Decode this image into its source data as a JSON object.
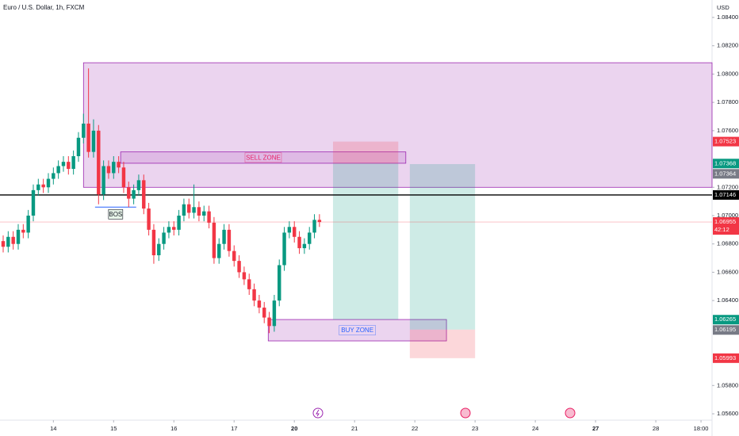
{
  "chart_data": {
    "type": "candlestick",
    "title": "Euro / U.S. Dollar, 1h, FXCM",
    "currency": "USD",
    "up_color": "#089981",
    "down_color": "#f23645",
    "xlim": [
      -0.632,
      141.2
    ],
    "ylim": [
      1.056,
      1.084
    ],
    "yticks": [
      {
        "value": 1.056,
        "label": "1.05600"
      },
      {
        "value": 1.058,
        "label": "1.05800"
      },
      {
        "value": 1.064,
        "label": "1.06400"
      },
      {
        "value": 1.066,
        "label": "1.06600"
      },
      {
        "value": 1.068,
        "label": "1.06800"
      },
      {
        "value": 1.07,
        "label": "1.07000"
      },
      {
        "value": 1.072,
        "label": "1.07200"
      },
      {
        "value": 1.076,
        "label": "1.07600"
      },
      {
        "value": 1.078,
        "label": "1.07800"
      },
      {
        "value": 1.08,
        "label": "1.08000"
      },
      {
        "value": 1.082,
        "label": "1.08200"
      },
      {
        "value": 1.084,
        "label": "1.08400"
      }
    ],
    "xticks": [
      {
        "value": 10,
        "label": "14"
      },
      {
        "value": 22,
        "label": "15"
      },
      {
        "value": 34,
        "label": "16"
      },
      {
        "value": 46,
        "label": "17"
      },
      {
        "value": 58,
        "label": "20",
        "bold": true
      },
      {
        "value": 70,
        "label": "21"
      },
      {
        "value": 82,
        "label": "22"
      },
      {
        "value": 94,
        "label": "23"
      },
      {
        "value": 106,
        "label": "24"
      },
      {
        "value": 118,
        "label": "27",
        "bold": true
      },
      {
        "value": 130,
        "label": "28"
      },
      {
        "value": 139,
        "label": "18:00"
      }
    ],
    "open": [
      1.0682,
      1.0678,
      1.0685,
      1.068,
      1.069,
      1.0688,
      1.07,
      1.0718,
      1.0722,
      1.072,
      1.0726,
      1.073,
      1.0735,
      1.0738,
      1.0733,
      1.0742,
      1.0755,
      1.0765,
      1.0745,
      1.076,
      1.0715,
      1.0735,
      1.073,
      1.0738,
      1.0734,
      1.072,
      1.0712,
      1.0718,
      1.0725,
      1.0705,
      1.069,
      1.0672,
      1.068,
      1.0688,
      1.0692,
      1.069,
      1.07,
      1.0708,
      1.0702,
      1.0706,
      1.07,
      1.0703,
      1.0695,
      1.067,
      1.068,
      1.069,
      1.0675,
      1.0668,
      1.066,
      1.0655,
      1.0648,
      1.064,
      1.0635,
      1.0628,
      1.0622,
      1.064,
      1.0665,
      1.0688,
      1.0692,
      1.0685,
      1.0677,
      1.068,
      1.0688,
      1.0697
    ],
    "high": [
      1.0686,
      1.0689,
      1.0689,
      1.0694,
      1.0694,
      1.0704,
      1.0722,
      1.0726,
      1.0726,
      1.073,
      1.0734,
      1.0739,
      1.0742,
      1.0742,
      1.0746,
      1.0759,
      1.0772,
      1.0804,
      1.0768,
      1.0764,
      1.0739,
      1.0739,
      1.0742,
      1.0742,
      1.0738,
      1.0724,
      1.0722,
      1.0729,
      1.0729,
      1.0709,
      1.0694,
      1.0684,
      1.0692,
      1.0696,
      1.0696,
      1.0704,
      1.0712,
      1.0712,
      1.0722,
      1.071,
      1.0707,
      1.0707,
      1.0699,
      1.0684,
      1.0694,
      1.0694,
      1.0679,
      1.0672,
      1.0664,
      1.0659,
      1.0652,
      1.0644,
      1.0639,
      1.0632,
      1.0644,
      1.0669,
      1.0692,
      1.0696,
      1.0696,
      1.0689,
      1.0684,
      1.0692,
      1.0701,
      1.0701
    ],
    "low": [
      1.0674,
      1.0674,
      1.0676,
      1.0676,
      1.0684,
      1.0684,
      1.0696,
      1.0714,
      1.0716,
      1.0716,
      1.0722,
      1.0726,
      1.0731,
      1.0729,
      1.0729,
      1.0738,
      1.0751,
      1.0741,
      1.0741,
      1.0708,
      1.0711,
      1.0726,
      1.0726,
      1.073,
      1.0716,
      1.0706,
      1.0708,
      1.0714,
      1.0701,
      1.0686,
      1.0666,
      1.0668,
      1.0676,
      1.0684,
      1.0686,
      1.0686,
      1.0696,
      1.0698,
      1.0698,
      1.0696,
      1.0696,
      1.0691,
      1.0666,
      1.0666,
      1.0676,
      1.0671,
      1.0664,
      1.0656,
      1.0651,
      1.0644,
      1.0636,
      1.0631,
      1.0624,
      1.0617,
      1.0618,
      1.0636,
      1.0661,
      1.0684,
      1.0681,
      1.0673,
      1.0673,
      1.0676,
      1.0684,
      1.0692
    ],
    "close": [
      1.0678,
      1.0685,
      1.068,
      1.069,
      1.0688,
      1.07,
      1.0718,
      1.0722,
      1.072,
      1.0726,
      1.073,
      1.0735,
      1.0738,
      1.0733,
      1.0742,
      1.0755,
      1.0765,
      1.0745,
      1.076,
      1.0715,
      1.0735,
      1.073,
      1.0738,
      1.0734,
      1.072,
      1.0712,
      1.0718,
      1.0725,
      1.0705,
      1.069,
      1.0672,
      1.068,
      1.0688,
      1.0692,
      1.069,
      1.07,
      1.0708,
      1.0702,
      1.0706,
      1.07,
      1.0703,
      1.0695,
      1.067,
      1.068,
      1.069,
      1.0675,
      1.0668,
      1.066,
      1.0655,
      1.0648,
      1.064,
      1.0635,
      1.0628,
      1.0622,
      1.064,
      1.0665,
      1.0688,
      1.0692,
      1.0685,
      1.0677,
      1.068,
      1.0688,
      1.0697,
      1.06955
    ],
    "zones": [
      {
        "top": 1.0808,
        "bottom": 1.072,
        "start": 16,
        "end": 141.2,
        "color": "#ce93d8"
      },
      {
        "label": "SELL ZONE",
        "top": 1.0745,
        "bottom": 1.0737,
        "start": 23.4,
        "end": 80.2,
        "color": "#ce93d8",
        "text_color": "#e91e63"
      },
      {
        "label": "BUY ZONE",
        "top": 1.06266,
        "bottom": 1.06115,
        "start": 52.8,
        "end": 88.3,
        "color": "#ce93d8",
        "text_color": "#2962ff"
      }
    ],
    "positions": [
      {
        "side": "short",
        "stop": 1.07523,
        "entry": 1.07368,
        "target": 1.06265,
        "start": 65.7,
        "end": 78.7
      },
      {
        "side": "long",
        "stop": 1.05993,
        "entry": 1.06195,
        "target": 1.07364,
        "start": 81,
        "end": 94
      }
    ],
    "bos": {
      "label": "BOS",
      "price": 1.0706,
      "start": 18.3,
      "end": 26.5
    },
    "level_line": 1.07146,
    "last_price": 1.06955,
    "countdown": "42:12",
    "price_labels": [
      {
        "price": 1.07523,
        "color": "#f23645"
      },
      {
        "price": 1.07368,
        "color": "#089981"
      },
      {
        "price": 1.07364,
        "color": "#787b86"
      },
      {
        "price": 1.07146,
        "color": "#000000"
      },
      {
        "price": 1.06955,
        "color": "#f23645"
      },
      {
        "price": 1.06265,
        "color": "#089981"
      },
      {
        "price": 1.06195,
        "color": "#787b86"
      },
      {
        "price": 1.05993,
        "color": "#f23645"
      }
    ]
  }
}
